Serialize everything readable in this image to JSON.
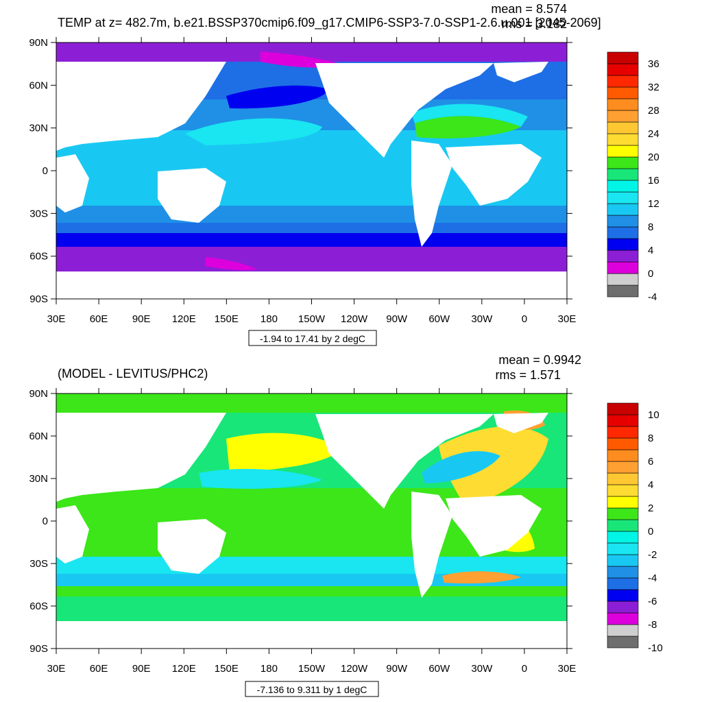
{
  "chart_data": [
    {
      "type": "heatmap",
      "title": "TEMP at z= 482.7m, b.e21.BSSP370cmip6.f09_g17.CMIP6-SSP3-7.0-SSP1-2.6.u.001 [2045-2069]",
      "mean_label": "mean = 8.574",
      "rms_label": "rms = 3.182",
      "range_label": "-1.94 to 17.41 by 2 degC",
      "x_ticks": [
        "30E",
        "60E",
        "90E",
        "120E",
        "150E",
        "180",
        "150W",
        "120W",
        "90W",
        "60W",
        "30W",
        "0",
        "30E"
      ],
      "y_ticks": [
        "90N",
        "60N",
        "30N",
        "0",
        "30S",
        "60S",
        "90S"
      ],
      "colorbar": {
        "levels": [
          -4,
          -2,
          0,
          2,
          4,
          6,
          8,
          10,
          12,
          14,
          16,
          18,
          20,
          22,
          24,
          26,
          28,
          30,
          32,
          34,
          36
        ],
        "labels": [
          "36",
          "32",
          "28",
          "24",
          "20",
          "16",
          "12",
          "8",
          "4",
          "0",
          "-4"
        ],
        "colors": [
          "#6e6e6e",
          "#cfcfcf",
          "#dd00dd",
          "#8c1fd6",
          "#0000f0",
          "#1e6fe6",
          "#1f90e6",
          "#19c8f2",
          "#19e6f0",
          "#00f5e6",
          "#19e678",
          "#3ce619",
          "#ffff00",
          "#ffdc32",
          "#ffc832",
          "#ffa032",
          "#ff8c1e",
          "#ff5a00",
          "#ff2800",
          "#e60000",
          "#c80000"
        ]
      }
    },
    {
      "type": "heatmap",
      "title": "(MODEL - LEVITUS/PHC2)",
      "mean_label": "mean = 0.9942",
      "rms_label": "rms = 1.571",
      "range_label": "-7.136 to 9.311 by 1 degC",
      "x_ticks": [
        "30E",
        "60E",
        "90E",
        "120E",
        "150E",
        "180",
        "150W",
        "120W",
        "90W",
        "60W",
        "30W",
        "0",
        "30E"
      ],
      "y_ticks": [
        "90N",
        "60N",
        "30N",
        "0",
        "30S",
        "60S",
        "90S"
      ],
      "colorbar": {
        "levels": [
          -10,
          -9,
          -8,
          -7,
          -6,
          -5,
          -4,
          -3,
          -2,
          -1,
          0,
          1,
          2,
          3,
          4,
          5,
          6,
          7,
          8,
          9,
          10
        ],
        "labels": [
          "10",
          "8",
          "6",
          "4",
          "2",
          "0",
          "-2",
          "-4",
          "-6",
          "-8",
          "-10"
        ],
        "colors": [
          "#6e6e6e",
          "#cfcfcf",
          "#dd00dd",
          "#8c1fd6",
          "#0000f0",
          "#1e6fe6",
          "#1f90e6",
          "#19c8f2",
          "#19e6f0",
          "#00f5e6",
          "#19e678",
          "#3ce619",
          "#ffff00",
          "#ffdc32",
          "#ffc832",
          "#ffa032",
          "#ff8c1e",
          "#ff5a00",
          "#ff2800",
          "#e60000",
          "#c80000"
        ]
      }
    }
  ]
}
